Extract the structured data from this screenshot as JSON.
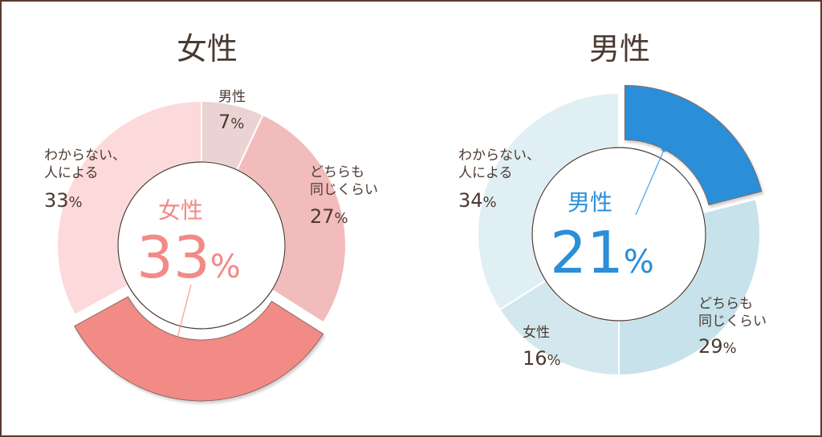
{
  "chart_data": [
    {
      "type": "pie",
      "title": "女性",
      "highlight_color": "#f28a86",
      "center_label": "女性",
      "center_value": "33",
      "unit": "%",
      "slices": [
        {
          "label": "男性",
          "value": 7,
          "color": "#ebd3d3"
        },
        {
          "label": "どちらも\n同じくらい",
          "value": 27,
          "color": "#f2bcbc"
        },
        {
          "label": "女性",
          "value": 33,
          "color": "#f28a86",
          "highlight": true
        },
        {
          "label": "わからない、\n人による",
          "value": 33,
          "color": "#fcdadc"
        }
      ]
    },
    {
      "type": "pie",
      "title": "男性",
      "highlight_color": "#2a8fd8",
      "center_label": "男性",
      "center_value": "21",
      "unit": "%",
      "slices": [
        {
          "label": "男性",
          "value": 21,
          "color": "#2a8fd8",
          "highlight": true
        },
        {
          "label": "どちらも\n同じくらい",
          "value": 29,
          "color": "#c7e2ea"
        },
        {
          "label": "女性",
          "value": 16,
          "color": "#d3e8ee"
        },
        {
          "label": "わからない、\n人による",
          "value": 34,
          "color": "#e0eff4"
        }
      ]
    }
  ]
}
